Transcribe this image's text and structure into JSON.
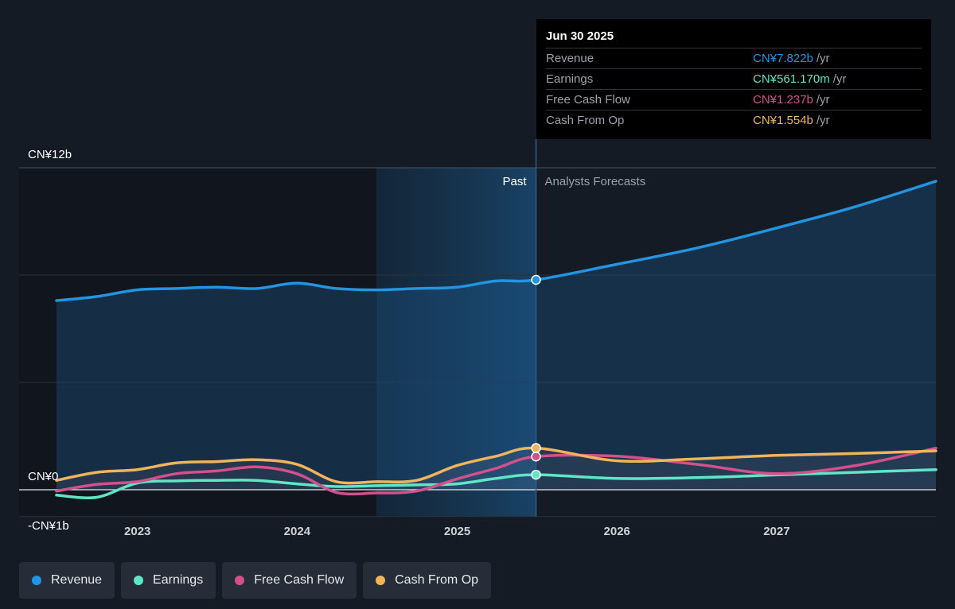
{
  "tooltip": {
    "date": "Jun 30 2025",
    "rows": [
      {
        "label": "Revenue",
        "value": "CN¥7.822b",
        "unit": "/yr",
        "color": "#2394df"
      },
      {
        "label": "Earnings",
        "value": "CN¥561.170m",
        "unit": "/yr",
        "color": "#5ee6c6"
      },
      {
        "label": "Free Cash Flow",
        "value": "CN¥1.237b",
        "unit": "/yr",
        "color": "#d4508c"
      },
      {
        "label": "Cash From Op",
        "value": "CN¥1.554b",
        "unit": "/yr",
        "color": "#f0b55b"
      }
    ]
  },
  "legend": [
    {
      "label": "Revenue",
      "color": "#2394df"
    },
    {
      "label": "Earnings",
      "color": "#5ee6c6"
    },
    {
      "label": "Free Cash Flow",
      "color": "#d4508c"
    },
    {
      "label": "Cash From Op",
      "color": "#f0b55b"
    }
  ],
  "chart_data": {
    "type": "line",
    "y_unit": "CN¥ billions",
    "ylim": [
      -1,
      12
    ],
    "y_tick_labels": [
      {
        "value": 12,
        "label": "CN¥12b"
      },
      {
        "value": 0,
        "label": "CN¥0"
      },
      {
        "value": -1,
        "label": "-CN¥1b"
      }
    ],
    "x_range": [
      "2022-06-30",
      "2027-12-31"
    ],
    "x_tick_labels": [
      {
        "date": "2023-01-01",
        "label": "2023"
      },
      {
        "date": "2024-01-01",
        "label": "2024"
      },
      {
        "date": "2025-01-01",
        "label": "2025"
      },
      {
        "date": "2026-01-01",
        "label": "2026"
      },
      {
        "date": "2027-01-01",
        "label": "2027"
      }
    ],
    "grid": "horizontal",
    "divider_date": "2025-06-30",
    "highlight_start": "2024-06-30",
    "past_label": "Past",
    "forecast_label": "Analysts Forecasts",
    "series": [
      {
        "name": "Revenue",
        "color": "#2394df",
        "area": true,
        "points": [
          [
            "2022-06-30",
            7.05
          ],
          [
            "2022-09-30",
            7.2
          ],
          [
            "2022-12-31",
            7.45
          ],
          [
            "2023-03-31",
            7.5
          ],
          [
            "2023-06-30",
            7.55
          ],
          [
            "2023-09-30",
            7.5
          ],
          [
            "2023-12-31",
            7.7
          ],
          [
            "2024-03-31",
            7.5
          ],
          [
            "2024-06-30",
            7.45
          ],
          [
            "2024-09-30",
            7.5
          ],
          [
            "2024-12-31",
            7.55
          ],
          [
            "2025-03-31",
            7.78
          ],
          [
            "2025-06-30",
            7.822
          ],
          [
            "2025-12-31",
            8.4
          ],
          [
            "2026-06-30",
            9.0
          ],
          [
            "2026-12-31",
            9.75
          ],
          [
            "2027-06-30",
            10.55
          ],
          [
            "2027-12-31",
            11.5
          ]
        ]
      },
      {
        "name": "Earnings",
        "color": "#5ee6c6",
        "points": [
          [
            "2022-06-30",
            -0.2
          ],
          [
            "2022-09-30",
            -0.28
          ],
          [
            "2022-12-31",
            0.25
          ],
          [
            "2023-03-31",
            0.33
          ],
          [
            "2023-06-30",
            0.35
          ],
          [
            "2023-09-30",
            0.35
          ],
          [
            "2023-12-31",
            0.22
          ],
          [
            "2024-03-31",
            0.12
          ],
          [
            "2024-06-30",
            0.15
          ],
          [
            "2024-09-30",
            0.18
          ],
          [
            "2024-12-31",
            0.22
          ],
          [
            "2025-03-31",
            0.42
          ],
          [
            "2025-06-30",
            0.561
          ],
          [
            "2025-12-31",
            0.42
          ],
          [
            "2026-06-30",
            0.45
          ],
          [
            "2026-12-31",
            0.55
          ],
          [
            "2027-06-30",
            0.65
          ],
          [
            "2027-12-31",
            0.75
          ]
        ]
      },
      {
        "name": "Free Cash Flow",
        "color": "#d4508c",
        "points": [
          [
            "2022-06-30",
            -0.05
          ],
          [
            "2022-09-30",
            0.2
          ],
          [
            "2022-12-31",
            0.3
          ],
          [
            "2023-03-31",
            0.6
          ],
          [
            "2023-06-30",
            0.7
          ],
          [
            "2023-09-30",
            0.85
          ],
          [
            "2023-12-31",
            0.6
          ],
          [
            "2024-03-31",
            -0.1
          ],
          [
            "2024-06-30",
            -0.12
          ],
          [
            "2024-09-30",
            -0.05
          ],
          [
            "2024-12-31",
            0.4
          ],
          [
            "2025-03-31",
            0.8
          ],
          [
            "2025-06-30",
            1.237
          ],
          [
            "2025-12-31",
            1.25
          ],
          [
            "2026-06-30",
            0.95
          ],
          [
            "2026-12-31",
            0.6
          ],
          [
            "2027-06-30",
            0.9
          ],
          [
            "2027-12-31",
            1.55
          ]
        ]
      },
      {
        "name": "Cash From Op",
        "color": "#f0b55b",
        "points": [
          [
            "2022-06-30",
            0.35
          ],
          [
            "2022-09-30",
            0.65
          ],
          [
            "2022-12-31",
            0.75
          ],
          [
            "2023-03-31",
            1.0
          ],
          [
            "2023-06-30",
            1.05
          ],
          [
            "2023-09-30",
            1.12
          ],
          [
            "2023-12-31",
            0.95
          ],
          [
            "2024-03-31",
            0.3
          ],
          [
            "2024-06-30",
            0.3
          ],
          [
            "2024-09-30",
            0.35
          ],
          [
            "2024-12-31",
            0.9
          ],
          [
            "2025-03-31",
            1.25
          ],
          [
            "2025-06-30",
            1.554
          ],
          [
            "2025-12-31",
            1.08
          ],
          [
            "2026-06-30",
            1.15
          ],
          [
            "2026-12-31",
            1.28
          ],
          [
            "2027-06-30",
            1.35
          ],
          [
            "2027-12-31",
            1.45
          ]
        ]
      }
    ]
  }
}
